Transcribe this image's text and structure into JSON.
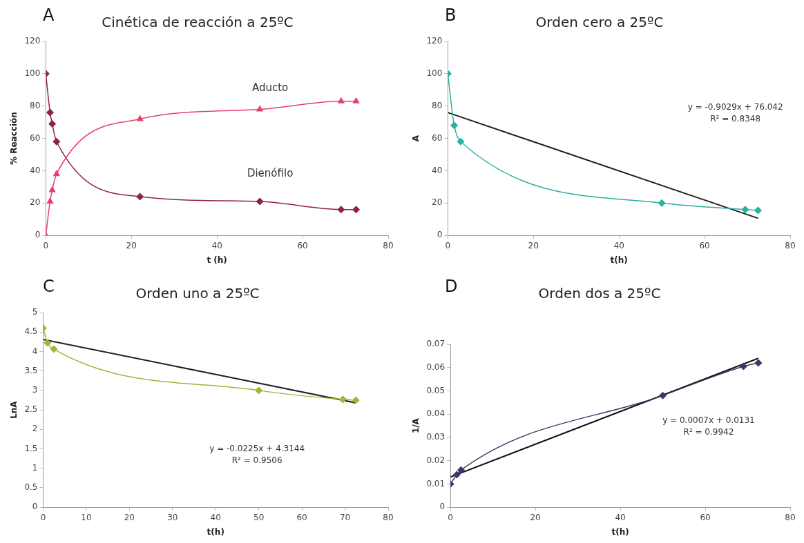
{
  "chart_data": [
    {
      "type": "line",
      "title": "Cinética de reacción a 25ºC",
      "xlabel": "t (h)",
      "ylabel": "% Reacción",
      "annotations": [
        "A"
      ],
      "xlim": [
        0,
        80
      ],
      "xticks": [
        0,
        20,
        40,
        60,
        80
      ],
      "ylim": [
        0,
        120
      ],
      "yticks": [
        0,
        20,
        40,
        60,
        80,
        100,
        120
      ],
      "series": [
        {
          "name": "Aducto",
          "color": "#e8406a",
          "marker": "triangle",
          "x": [
            0,
            1,
            1.5,
            2.5,
            22,
            50,
            69,
            72.5
          ],
          "values": [
            0,
            21,
            28,
            38,
            72,
            78,
            83,
            83
          ]
        },
        {
          "name": "Dienófilo",
          "color": "#8e2150",
          "marker": "diamond",
          "x": [
            0,
            1,
            1.5,
            2.5,
            22,
            50,
            69,
            72.5
          ],
          "values": [
            100,
            76,
            69,
            58,
            24,
            21,
            16,
            16
          ]
        }
      ]
    },
    {
      "type": "line",
      "title": "Orden cero a 25ºC",
      "xlabel": "t(h)",
      "ylabel": "A",
      "annotations": [
        "B",
        "y = -0.9029x + 76.042",
        "R² = 0.8348"
      ],
      "xlim": [
        0,
        80
      ],
      "xticks": [
        0,
        20,
        40,
        60,
        80
      ],
      "ylim": [
        0,
        120
      ],
      "yticks": [
        0,
        20,
        40,
        60,
        80,
        100,
        120
      ],
      "series": [
        {
          "color": "#2ab0a0",
          "marker": "diamond",
          "x": [
            0,
            1.5,
            3,
            50,
            69.5,
            72.5
          ],
          "values": [
            100,
            68,
            58,
            20,
            16,
            15.5
          ]
        },
        {
          "color": "#222222",
          "marker": "none",
          "x": [
            0,
            72.5
          ],
          "values": [
            76,
            10.6
          ]
        }
      ]
    },
    {
      "type": "line",
      "title": "Orden uno a 25ºC",
      "xlabel": "t(h)",
      "ylabel": "LnA",
      "annotations": [
        "C",
        "y = -0.0225x + 4.3144",
        "R² = 0.9506"
      ],
      "xlim": [
        0,
        80
      ],
      "xticks": [
        0,
        10,
        20,
        30,
        40,
        50,
        60,
        70,
        80
      ],
      "ylim": [
        0,
        5
      ],
      "yticks": [
        0,
        0.5,
        1,
        1.5,
        2,
        2.5,
        3,
        3.5,
        4,
        4.5,
        5
      ],
      "series": [
        {
          "color": "#9ab83a",
          "marker": "diamond",
          "x": [
            0,
            1,
            2.5,
            50,
            69.5,
            72.5
          ],
          "values": [
            4.6,
            4.22,
            4.06,
            3.0,
            2.77,
            2.75
          ]
        },
        {
          "color": "#222222",
          "marker": "none",
          "x": [
            0,
            72.5
          ],
          "values": [
            4.31,
            2.68
          ]
        }
      ]
    },
    {
      "type": "line",
      "title": "Orden dos a 25ºC",
      "xlabel": "t(h)",
      "ylabel": "1/A",
      "annotations": [
        "D",
        "y = 0.0007x + 0.0131",
        "R² = 0.9942"
      ],
      "xlim": [
        0,
        80
      ],
      "xticks": [
        0,
        20,
        40,
        60,
        80
      ],
      "ylim": [
        0,
        0.07
      ],
      "yticks": [
        0,
        0.01,
        0.02,
        0.03,
        0.04,
        0.05,
        0.06,
        0.07
      ],
      "series": [
        {
          "color": "#3a3a6a",
          "marker": "diamond",
          "x": [
            0,
            1.5,
            2.5,
            50,
            69,
            72.5
          ],
          "values": [
            0.01,
            0.014,
            0.016,
            0.048,
            0.0605,
            0.062
          ]
        },
        {
          "color": "#111111",
          "marker": "none",
          "x": [
            0,
            72.5
          ],
          "values": [
            0.013,
            0.064
          ]
        }
      ]
    }
  ]
}
